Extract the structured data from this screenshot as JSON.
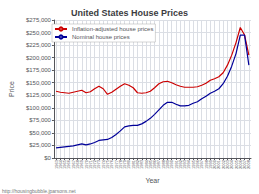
{
  "chart_data": {
    "type": "line",
    "title": "United States House Prices",
    "xlabel": "Year",
    "ylabel": "Price",
    "annotations": [
      "http://housingbubble.jparsons.net"
    ],
    "x": [
      1963,
      1964,
      1965,
      1966,
      1967,
      1968,
      1969,
      1970,
      1971,
      1972,
      1973,
      1974,
      1975,
      1976,
      1977,
      1978,
      1979,
      1980,
      1981,
      1982,
      1983,
      1984,
      1985,
      1986,
      1987,
      1988,
      1989,
      1990,
      1991,
      1992,
      1993,
      1994,
      1995,
      1996,
      1997,
      1998,
      1999,
      2000,
      2001,
      2002,
      2003,
      2004,
      2005,
      2006,
      2007,
      2008
    ],
    "series": [
      {
        "name": "Inflation-adjusted house prices",
        "color": "#cc0000",
        "values": [
          133000,
          131000,
          130000,
          129000,
          131000,
          133000,
          135000,
          130000,
          132000,
          138000,
          143000,
          138000,
          127000,
          131000,
          137000,
          143000,
          148000,
          145000,
          140000,
          130000,
          129000,
          130000,
          133000,
          140000,
          148000,
          152000,
          153000,
          150000,
          146000,
          143000,
          141000,
          141000,
          141000,
          142000,
          145000,
          149000,
          155000,
          158000,
          162000,
          170000,
          185000,
          205000,
          230000,
          260000,
          245000,
          205000
        ]
      },
      {
        "name": "Nominal house prices",
        "color": "#000099",
        "values": [
          20000,
          21000,
          22000,
          23000,
          24000,
          26000,
          28000,
          26000,
          28000,
          31000,
          35000,
          36000,
          37000,
          41000,
          47000,
          54000,
          62000,
          64000,
          65000,
          65000,
          68000,
          73000,
          79000,
          87000,
          96000,
          105000,
          111000,
          111000,
          107000,
          104000,
          104000,
          105000,
          109000,
          112000,
          118000,
          123000,
          129000,
          133000,
          138000,
          148000,
          163000,
          183000,
          208000,
          245000,
          245000,
          185000
        ]
      }
    ],
    "xlim": [
      1962.5,
      2008.5
    ],
    "xticks": [
      1963,
      1964,
      1965,
      1966,
      1967,
      1968,
      1969,
      1970,
      1971,
      1972,
      1973,
      1974,
      1975,
      1976,
      1977,
      1978,
      1979,
      1980,
      1981,
      1982,
      1983,
      1984,
      1985,
      1986,
      1987,
      1988,
      1989,
      1990,
      1991,
      1992,
      1993,
      1994,
      1995,
      1996,
      1997,
      1998,
      1999,
      2000,
      2001,
      2002,
      2003,
      2004,
      2005,
      2006,
      2007,
      2008
    ],
    "ylim": [
      0,
      275000
    ],
    "yticks": [
      {
        "value": 0,
        "label": "$0"
      },
      {
        "value": 25000,
        "label": "$25,000"
      },
      {
        "value": 50000,
        "label": "$50,000"
      },
      {
        "value": 75000,
        "label": "$75,000"
      },
      {
        "value": 100000,
        "label": "$100,000"
      },
      {
        "value": 125000,
        "label": "$125,000"
      },
      {
        "value": 150000,
        "label": "$150,000"
      },
      {
        "value": 175000,
        "label": "$175,000"
      },
      {
        "value": 200000,
        "label": "$200,000"
      },
      {
        "value": 225000,
        "label": "$225,000"
      },
      {
        "value": 250000,
        "label": "$250,000"
      },
      {
        "value": 275000,
        "label": "$275,000"
      }
    ],
    "grid": true,
    "legend": "upper left"
  }
}
